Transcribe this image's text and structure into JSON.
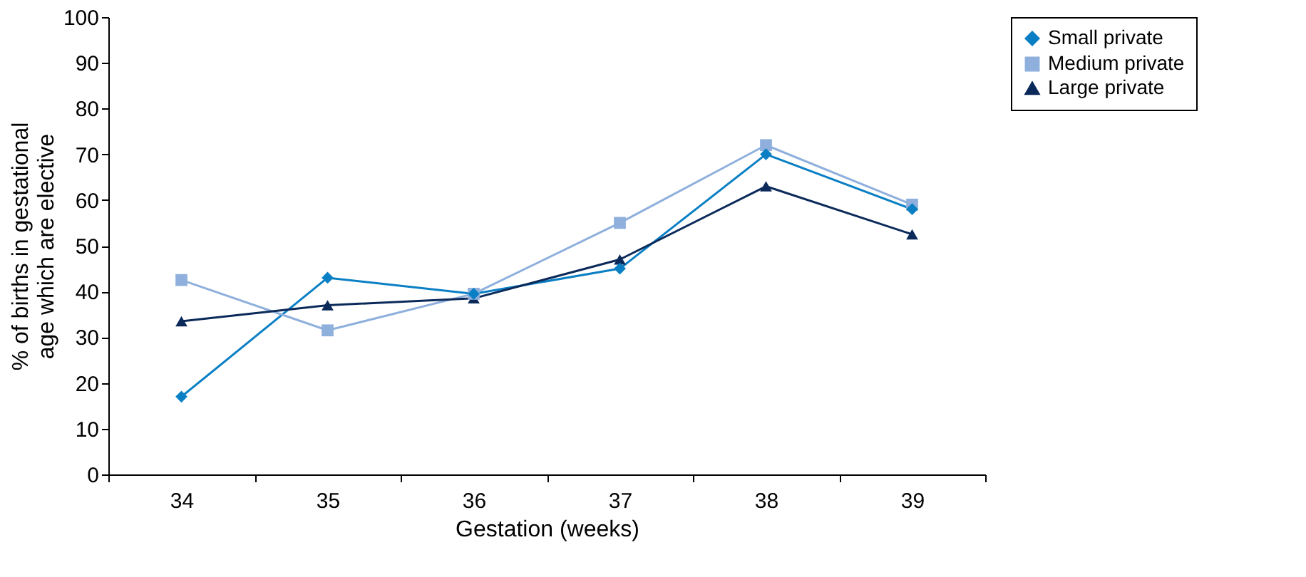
{
  "chart_data": {
    "type": "line",
    "xlabel": "Gestation (weeks)",
    "ylabel": "% of births in gestational age which are elective",
    "categories": [
      "34",
      "35",
      "36",
      "37",
      "38",
      "39"
    ],
    "ylim": [
      0,
      100
    ],
    "yticks": [
      0,
      10,
      20,
      30,
      40,
      50,
      60,
      70,
      80,
      90,
      100
    ],
    "grid": false,
    "legend": "right",
    "series": [
      {
        "name": "Small private",
        "color": "#0a7fc4",
        "marker": "diamond",
        "values": [
          17,
          43,
          39.5,
          45,
          70,
          58
        ]
      },
      {
        "name": "Medium private",
        "color": "#8fb0dc",
        "marker": "square",
        "values": [
          42.5,
          31.5,
          39.5,
          55,
          72,
          59
        ]
      },
      {
        "name": "Large private",
        "color": "#0b2a5a",
        "marker": "triangle",
        "values": [
          33.5,
          37,
          38.5,
          47,
          63,
          52.5
        ]
      }
    ]
  }
}
